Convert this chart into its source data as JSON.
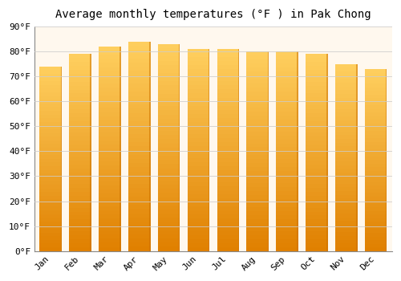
{
  "title": "Average monthly temperatures (°F ) in Pak Chong",
  "months": [
    "Jan",
    "Feb",
    "Mar",
    "Apr",
    "May",
    "Jun",
    "Jul",
    "Aug",
    "Sep",
    "Oct",
    "Nov",
    "Dec"
  ],
  "values": [
    74,
    79,
    82,
    84,
    83,
    81,
    81,
    80,
    80,
    79,
    75,
    73
  ],
  "bar_color_main": "#FFA500",
  "bar_gradient_light": "#FFD080",
  "bar_gradient_dark": "#E07800",
  "background_color": "#FFFFFF",
  "plot_bg_color": "#FFF8EE",
  "grid_color": "#CCCCCC",
  "ylim": [
    0,
    90
  ],
  "ytick_step": 10,
  "title_fontsize": 10,
  "tick_fontsize": 8,
  "bar_edge_color": "#BBBBBB",
  "bar_width": 0.75
}
